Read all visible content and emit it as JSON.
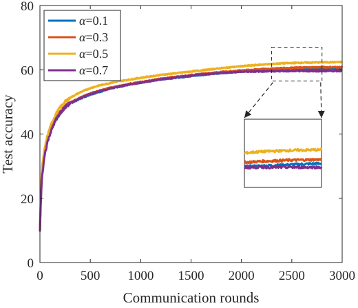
{
  "chart_data": {
    "type": "line",
    "xlabel": "Communication rounds",
    "ylabel": "Test accuracy",
    "xlim": [
      0,
      3000
    ],
    "ylim": [
      0,
      80
    ],
    "xticks": [
      0,
      500,
      1000,
      1500,
      2000,
      2500,
      3000
    ],
    "yticks": [
      0,
      20,
      40,
      60,
      80
    ],
    "grid": false,
    "legend_position": "top-left",
    "legend_symbol": "α",
    "series": [
      {
        "name": "=0.1",
        "color": "#0072BD",
        "x": [
          0,
          10,
          20,
          35,
          50,
          75,
          100,
          150,
          200,
          250,
          300,
          400,
          500,
          600,
          700,
          800,
          900,
          1000,
          1200,
          1400,
          1600,
          1800,
          2000,
          2200,
          2400,
          2600,
          2800,
          3000
        ],
        "y": [
          10,
          22,
          28,
          32,
          35,
          38,
          40.5,
          44,
          46.5,
          48.5,
          49.5,
          51,
          52.3,
          53.2,
          54.2,
          54.8,
          55.5,
          56,
          57,
          57.7,
          58.4,
          59,
          59.5,
          59.6,
          59.8,
          60,
          60.2,
          60.4
        ]
      },
      {
        "name": "=0.3",
        "color": "#D95319",
        "x": [
          0,
          10,
          20,
          35,
          50,
          75,
          100,
          150,
          200,
          250,
          300,
          400,
          500,
          600,
          700,
          800,
          900,
          1000,
          1200,
          1400,
          1600,
          1800,
          2000,
          2200,
          2400,
          2600,
          2800,
          3000
        ],
        "y": [
          10,
          21,
          27,
          31,
          34.5,
          38,
          40.5,
          44.2,
          46.8,
          48.6,
          49.8,
          51.3,
          52.6,
          53.6,
          54.4,
          55,
          55.7,
          56.2,
          57.2,
          58,
          58.7,
          59.3,
          59.8,
          60.2,
          60.5,
          60.7,
          60.8,
          60.8
        ]
      },
      {
        "name": "=0.5",
        "color": "#EDB120",
        "x": [
          0,
          10,
          20,
          35,
          50,
          75,
          100,
          150,
          200,
          250,
          300,
          400,
          500,
          600,
          700,
          800,
          900,
          1000,
          1200,
          1400,
          1600,
          1800,
          2000,
          2200,
          2400,
          2600,
          2800,
          3000
        ],
        "y": [
          10,
          23,
          29,
          33,
          36,
          39.5,
          42,
          45.8,
          48.2,
          50,
          51.3,
          53,
          54.3,
          55.2,
          55.9,
          56.5,
          57,
          57.5,
          58.4,
          59.1,
          59.8,
          60.5,
          61.1,
          61.6,
          62,
          62.2,
          62.3,
          62.4
        ]
      },
      {
        "name": "=0.7",
        "color": "#7E2F8E",
        "x": [
          0,
          10,
          20,
          35,
          50,
          75,
          100,
          150,
          200,
          250,
          300,
          400,
          500,
          600,
          700,
          800,
          900,
          1000,
          1200,
          1400,
          1600,
          1800,
          2000,
          2200,
          2400,
          2600,
          2800,
          3000
        ],
        "y": [
          10,
          20,
          26,
          30.5,
          34,
          37.5,
          40,
          44,
          46.5,
          48.3,
          49.6,
          51.2,
          52.5,
          53.4,
          54.2,
          54.9,
          55.5,
          56,
          57,
          57.8,
          58.5,
          59,
          59.4,
          59.5,
          59.6,
          59.6,
          59.6,
          59.6
        ]
      }
    ],
    "inset": {
      "source_xlim": [
        2300,
        2800
      ],
      "source_ylim": [
        56.5,
        67
      ]
    }
  }
}
